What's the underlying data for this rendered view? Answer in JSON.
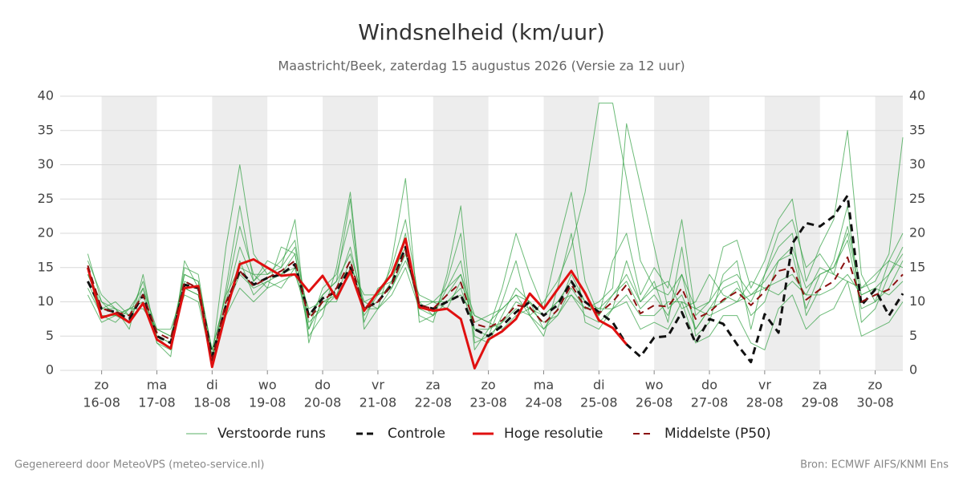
{
  "chart_data": {
    "type": "line",
    "title": "Windsnelheid (km/uur)",
    "subtitle": "Maastricht/Beek, zaterdag 15 augustus 2026 (Versie za 12 uur)",
    "footer_left": "Gegenereerd door MeteoVPS (meteo-service.nl)",
    "footer_right": "Bron: ECMWF AIFS/KNMI Ens",
    "x": [
      15.75,
      16,
      16.25,
      16.5,
      16.75,
      17,
      17.25,
      17.5,
      17.75,
      18,
      18.25,
      18.5,
      18.75,
      19,
      19.25,
      19.5,
      19.75,
      20,
      20.25,
      20.5,
      20.75,
      21,
      21.25,
      21.5,
      21.75,
      22,
      22.25,
      22.5,
      22.75,
      23,
      23.25,
      23.5,
      23.75,
      24,
      24.25,
      24.5,
      24.75,
      25,
      25.25,
      25.5,
      25.75,
      26,
      26.25,
      26.5,
      26.75,
      27,
      27.25,
      27.5,
      27.75,
      28,
      28.25,
      28.5,
      28.75,
      29,
      29.25,
      29.5,
      29.75,
      30,
      30.25,
      30.5
    ],
    "xlim": [
      15.25,
      30.5
    ],
    "xticks": [
      {
        "value": 16,
        "label": "zo",
        "date": "16-08"
      },
      {
        "value": 17,
        "label": "ma",
        "date": "17-08"
      },
      {
        "value": 18,
        "label": "di",
        "date": "18-08"
      },
      {
        "value": 19,
        "label": "wo",
        "date": "19-08"
      },
      {
        "value": 20,
        "label": "do",
        "date": "20-08"
      },
      {
        "value": 21,
        "label": "vr",
        "date": "21-08"
      },
      {
        "value": 22,
        "label": "za",
        "date": "22-08"
      },
      {
        "value": 23,
        "label": "zo",
        "date": "23-08"
      },
      {
        "value": 24,
        "label": "ma",
        "date": "24-08"
      },
      {
        "value": 25,
        "label": "di",
        "date": "25-08"
      },
      {
        "value": 26,
        "label": "wo",
        "date": "26-08"
      },
      {
        "value": 27,
        "label": "do",
        "date": "27-08"
      },
      {
        "value": 28,
        "label": "vr",
        "date": "28-08"
      },
      {
        "value": 29,
        "label": "za",
        "date": "29-08"
      },
      {
        "value": 30,
        "label": "zo",
        "date": "30-08"
      }
    ],
    "ylim": [
      0,
      40
    ],
    "yticks": [
      0,
      5,
      10,
      15,
      20,
      25,
      30,
      35,
      40
    ],
    "grid": true,
    "shade_alternate_days": true,
    "legend": "bottom",
    "ensemble": {
      "name": "Verstoorde runs",
      "color": "#2e9e3e",
      "members": [
        [
          17,
          10,
          9,
          7,
          12,
          4,
          3,
          15,
          14,
          2,
          18,
          30,
          17,
          14,
          16,
          19,
          6,
          12,
          14,
          22,
          8,
          11,
          15,
          22,
          10,
          8,
          12,
          16,
          5,
          4,
          8,
          12,
          10,
          6,
          9,
          14,
          10,
          8,
          11,
          13,
          9,
          11,
          8,
          14,
          6,
          9,
          12,
          13,
          8,
          10,
          16,
          17,
          9,
          14,
          15,
          19,
          9,
          10,
          12,
          16
        ],
        [
          12,
          8,
          8,
          9,
          10,
          6,
          5,
          11,
          10,
          1,
          8,
          12,
          10,
          12,
          13,
          14,
          8,
          9,
          11,
          14,
          10,
          9,
          11,
          15,
          9,
          10,
          10,
          11,
          8,
          7,
          6,
          8,
          9,
          8,
          10,
          11,
          9,
          9,
          9,
          11,
          8,
          8,
          10,
          10,
          9,
          8,
          9,
          10,
          11,
          12,
          13,
          14,
          11,
          11,
          12,
          14,
          11,
          12,
          11,
          13
        ],
        [
          14,
          9,
          10,
          8,
          13,
          5,
          4,
          14,
          13,
          3,
          11,
          21,
          14,
          12,
          18,
          17,
          5,
          8,
          15,
          26,
          7,
          12,
          13,
          20,
          8,
          7,
          14,
          24,
          4,
          5,
          10,
          16,
          8,
          5,
          12,
          20,
          7,
          6,
          9,
          16,
          10,
          13,
          7,
          18,
          5,
          7,
          14,
          16,
          6,
          14,
          18,
          20,
          8,
          12,
          16,
          24,
          7,
          9,
          14,
          18
        ],
        [
          16,
          11,
          9,
          6,
          14,
          4,
          2,
          16,
          12,
          1,
          12,
          24,
          13,
          16,
          15,
          22,
          4,
          11,
          13,
          25,
          6,
          9,
          16,
          28,
          7,
          8,
          13,
          20,
          3,
          6,
          12,
          20,
          14,
          9,
          18,
          26,
          13,
          8,
          16,
          20,
          11,
          15,
          12,
          22,
          8,
          10,
          18,
          19,
          12,
          16,
          22,
          25,
          13,
          18,
          22,
          35,
          14,
          10,
          16,
          20
        ],
        [
          13,
          8,
          7,
          9,
          9,
          6,
          6,
          12,
          11,
          2,
          9,
          16,
          11,
          13,
          12,
          15,
          9,
          10,
          10,
          15,
          11,
          11,
          12,
          16,
          11,
          10,
          9,
          13,
          7,
          8,
          9,
          11,
          8,
          10,
          13,
          18,
          26,
          39,
          39,
          28,
          16,
          12,
          13,
          9,
          10,
          14,
          11,
          10,
          13,
          12,
          11,
          13,
          11,
          15,
          14,
          13,
          12,
          14,
          16,
          15
        ],
        [
          15,
          9,
          9,
          8,
          11,
          5,
          3,
          13,
          12,
          2,
          10,
          18,
          13,
          15,
          14,
          17,
          7,
          9,
          12,
          18,
          9,
          10,
          13,
          19,
          9,
          9,
          11,
          14,
          6,
          6,
          7,
          10,
          9,
          7,
          8,
          12,
          9,
          10,
          12,
          36,
          27,
          18,
          9,
          11,
          6,
          9,
          10,
          12,
          10,
          14,
          20,
          22,
          15,
          17,
          14,
          21,
          12,
          13,
          17,
          34
        ],
        [
          11,
          7,
          8,
          7,
          10,
          5,
          4,
          12,
          11,
          1,
          9,
          14,
          12,
          13,
          14,
          15,
          6,
          10,
          11,
          16,
          9,
          9,
          12,
          17,
          9,
          8,
          10,
          12,
          6,
          5,
          7,
          9,
          8,
          6,
          8,
          11,
          8,
          7,
          9,
          10,
          6,
          7,
          6,
          10,
          4,
          5,
          8,
          8,
          4,
          3,
          9,
          11,
          6,
          8,
          9,
          13,
          5,
          6,
          7,
          10
        ],
        [
          14,
          10,
          8,
          9,
          12,
          6,
          5,
          14,
          13,
          3,
          11,
          15,
          14,
          14,
          15,
          18,
          8,
          11,
          13,
          17,
          10,
          11,
          14,
          18,
          10,
          10,
          12,
          14,
          8,
          7,
          9,
          11,
          10,
          8,
          10,
          13,
          10,
          9,
          11,
          14,
          10,
          12,
          11,
          14,
          9,
          10,
          13,
          14,
          11,
          13,
          16,
          18,
          12,
          14,
          15,
          20,
          11,
          12,
          14,
          17
        ]
      ]
    },
    "series": [
      {
        "name": "Controle",
        "color": "#111111",
        "dashed": true,
        "width": 3,
        "values": [
          13,
          9,
          8.5,
          7.5,
          11,
          5,
          4,
          12.5,
          12,
          2,
          9.5,
          14.5,
          12.5,
          13.5,
          14,
          15.5,
          8,
          10.5,
          11.5,
          15,
          9,
          10,
          12.5,
          18,
          9.5,
          9,
          10,
          11,
          6,
          5,
          6.5,
          8.5,
          10,
          8,
          9.5,
          13,
          10,
          8.5,
          7,
          3.8,
          2,
          4.8,
          5,
          8.5,
          4,
          7.5,
          6.8,
          3.8,
          1.2,
          8.2,
          5.5,
          18.5,
          21.5,
          21,
          22.5,
          25.5,
          9.5,
          11.8,
          8,
          11.2
        ]
      },
      {
        "name": "Hoge resolutie",
        "color": "#e01010",
        "dashed": false,
        "width": 3,
        "values": [
          15,
          7.7,
          8.3,
          7,
          9.8,
          4.5,
          3.2,
          12,
          12.3,
          0.5,
          8.5,
          15.5,
          16.2,
          15,
          13.8,
          14,
          11.5,
          13.8,
          10.5,
          14.5,
          8.7,
          11.5,
          14,
          19.2,
          9.2,
          8.7,
          9,
          7.5,
          0.3,
          4.5,
          5.7,
          7.5,
          11.2,
          9,
          11.8,
          14.5,
          11.3,
          7.3,
          6.2,
          3.8,
          null,
          null,
          null,
          null,
          null,
          null,
          null,
          null,
          null,
          null,
          null,
          null,
          null,
          null,
          null,
          null,
          null,
          null,
          null,
          null
        ]
      },
      {
        "name": "Middelste (P50)",
        "color": "#8b1010",
        "dashed": true,
        "width": 2,
        "values": [
          15.3,
          9,
          8.5,
          8,
          11,
          5.5,
          4.5,
          13,
          12,
          1.5,
          10,
          14.5,
          12.3,
          13.5,
          14.5,
          16,
          7.5,
          10,
          12,
          16,
          9,
          10,
          12.5,
          17.5,
          9.5,
          9,
          11,
          12.8,
          6.8,
          6.2,
          7.3,
          9.5,
          9.2,
          6.8,
          8.8,
          12.5,
          9.2,
          8.3,
          10,
          12.5,
          8.3,
          9.5,
          9.3,
          12,
          7.5,
          8.5,
          10.3,
          11.5,
          9.5,
          11.5,
          14.5,
          15,
          10.3,
          11.8,
          13,
          16.5,
          10,
          11,
          11.8,
          14
        ]
      }
    ]
  }
}
